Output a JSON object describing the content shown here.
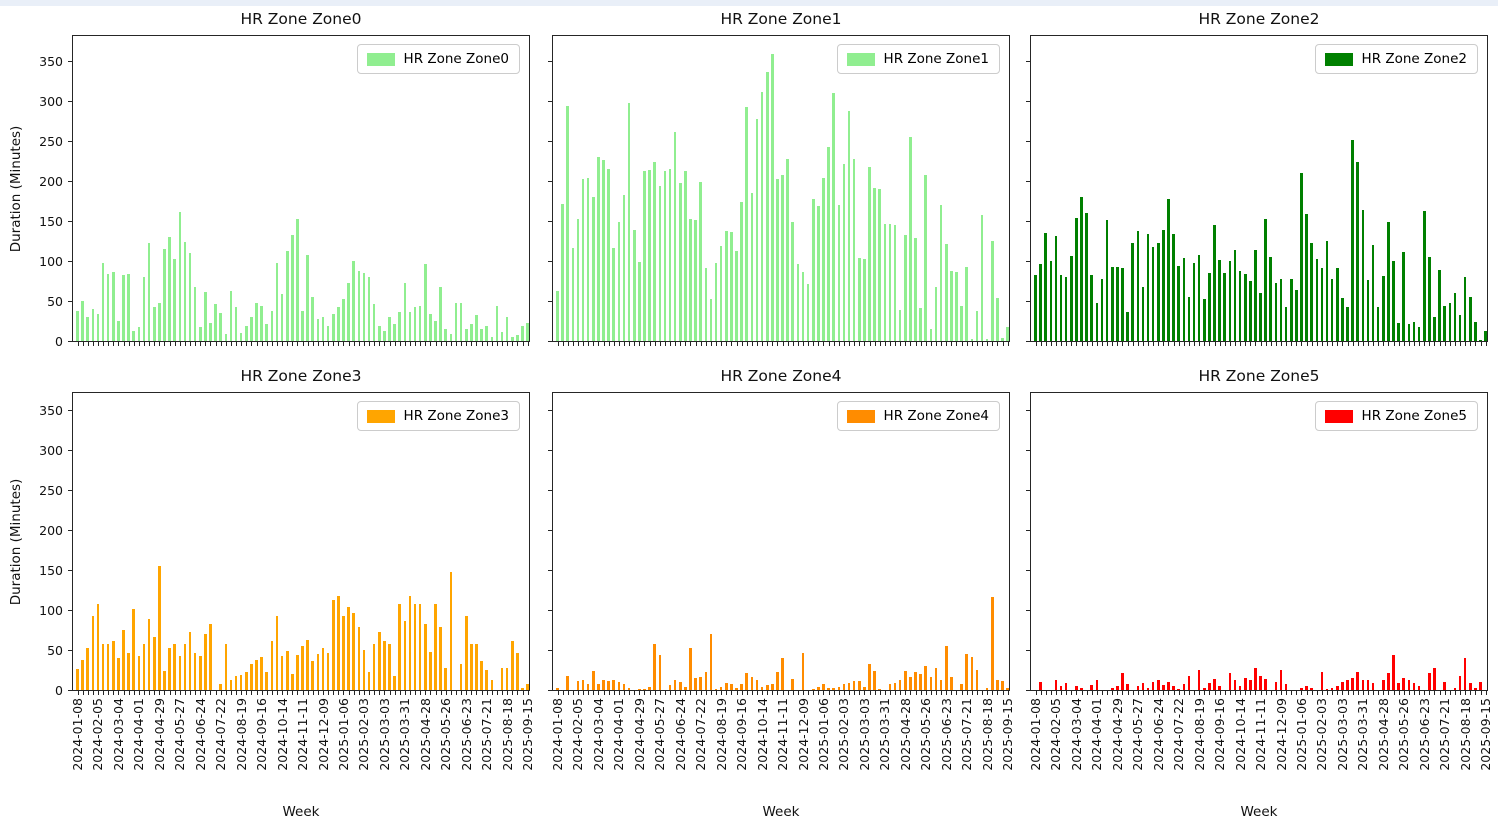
{
  "page": {
    "top_strip_color": "#e9eff8"
  },
  "axes": {
    "ylabel": "Duration (Minutes)",
    "xlabel": "Week",
    "yticks": [
      0,
      50,
      100,
      150,
      200,
      250,
      300,
      350
    ],
    "xtick_labels": [
      "2024-01-08",
      "2024-02-05",
      "2024-03-04",
      "2024-04-01",
      "2024-04-29",
      "2024-05-27",
      "2024-06-24",
      "2024-07-22",
      "2024-08-19",
      "2024-09-16",
      "2024-10-14",
      "2024-11-11",
      "2024-12-09",
      "2025-01-06",
      "2025-02-03",
      "2025-03-03",
      "2025-03-31",
      "2025-04-28",
      "2025-05-26",
      "2025-06-23",
      "2025-07-21",
      "2025-08-18",
      "2025-09-15"
    ],
    "xtick_step_weeks": 4,
    "grid": false,
    "legend_position": "upper right"
  },
  "chart_data": [
    {
      "type": "bar",
      "title": "HR Zone Zone0",
      "legend_label": "HR Zone Zone0",
      "color": "#90ee90",
      "ylim": [
        0,
        383
      ],
      "values": [
        38,
        50,
        30,
        40,
        34,
        97,
        84,
        86,
        25,
        82,
        84,
        13,
        17,
        80,
        122,
        42,
        47,
        115,
        130,
        103,
        161,
        124,
        110,
        67,
        17,
        61,
        23,
        46,
        35,
        9,
        63,
        42,
        10,
        19,
        30,
        48,
        44,
        21,
        37,
        97,
        59,
        112,
        132,
        152,
        38,
        107,
        55,
        28,
        30,
        19,
        34,
        42,
        52,
        73,
        100,
        88,
        85,
        80,
        46,
        19,
        13,
        30,
        21,
        36,
        73,
        36,
        42,
        44,
        96,
        34,
        25,
        67,
        15,
        9,
        48,
        48,
        15,
        21,
        32,
        15,
        19,
        5,
        44,
        11,
        30,
        5,
        7,
        19,
        23
      ]
    },
    {
      "type": "bar",
      "title": "HR Zone Zone1",
      "legend_label": "HR Zone Zone1",
      "color": "#90ee90",
      "ylim": [
        0,
        383
      ],
      "values": [
        62,
        171,
        294,
        116,
        152,
        203,
        204,
        180,
        230,
        226,
        215,
        116,
        149,
        183,
        297,
        139,
        99,
        212,
        214,
        224,
        194,
        212,
        215,
        261,
        197,
        212,
        153,
        151,
        199,
        91,
        53,
        98,
        119,
        137,
        136,
        112,
        174,
        293,
        185,
        278,
        311,
        336,
        359,
        203,
        208,
        228,
        149,
        96,
        86,
        71,
        178,
        169,
        204,
        242,
        310,
        170,
        221,
        288,
        228,
        104,
        103,
        217,
        191,
        190,
        146,
        146,
        145,
        39,
        133,
        255,
        129,
        41,
        208,
        15,
        67,
        170,
        121,
        88,
        86,
        44,
        92,
        3,
        38,
        158,
        2,
        125,
        54,
        4,
        17
      ]
    },
    {
      "type": "bar",
      "title": "HR Zone Zone2",
      "legend_label": "HR Zone Zone2",
      "color": "#008000",
      "ylim": [
        0,
        383
      ],
      "values": [
        83,
        96,
        135,
        100,
        131,
        82,
        80,
        106,
        154,
        180,
        160,
        82,
        48,
        78,
        151,
        92,
        93,
        91,
        36,
        123,
        137,
        67,
        134,
        117,
        123,
        139,
        178,
        134,
        94,
        104,
        55,
        97,
        107,
        53,
        85,
        145,
        101,
        85,
        100,
        114,
        87,
        84,
        75,
        114,
        60,
        153,
        105,
        72,
        78,
        43,
        78,
        64,
        210,
        159,
        123,
        102,
        91,
        125,
        77,
        91,
        54,
        43,
        251,
        224,
        164,
        76,
        120,
        42,
        81,
        149,
        100,
        22,
        111,
        21,
        24,
        18,
        162,
        105,
        30,
        89,
        44,
        47,
        60,
        33,
        80,
        55,
        24,
        1,
        12
      ]
    },
    {
      "type": "bar",
      "title": "HR Zone Zone3",
      "legend_label": "HR Zone Zone3",
      "color": "#ffa500",
      "ylim": [
        0,
        374
      ],
      "values": [
        26,
        37,
        52,
        92,
        107,
        58,
        58,
        61,
        40,
        75,
        46,
        101,
        42,
        58,
        89,
        66,
        155,
        24,
        52,
        57,
        43,
        58,
        73,
        46,
        43,
        70,
        82,
        0,
        8,
        58,
        12,
        18,
        19,
        23,
        33,
        38,
        41,
        22,
        61,
        92,
        42,
        49,
        20,
        44,
        55,
        63,
        36,
        45,
        52,
        46,
        113,
        117,
        92,
        104,
        96,
        79,
        50,
        23,
        58,
        73,
        61,
        58,
        17,
        108,
        86,
        117,
        108,
        108,
        83,
        48,
        107,
        79,
        28,
        148,
        0,
        33,
        92,
        58,
        58,
        36,
        25,
        12,
        0,
        28,
        28,
        61,
        46,
        2,
        8
      ]
    },
    {
      "type": "bar",
      "title": "HR Zone Zone4",
      "legend_label": "HR Zone Zone4",
      "color": "#ff8c00",
      "ylim": [
        0,
        374
      ],
      "values": [
        3,
        0,
        17,
        0,
        11,
        12,
        8,
        24,
        7,
        12,
        11,
        12,
        10,
        7,
        2,
        0,
        1,
        1,
        4,
        57,
        44,
        0,
        6,
        12,
        10,
        4,
        52,
        15,
        16,
        22,
        70,
        1,
        4,
        9,
        7,
        3,
        7,
        21,
        16,
        12,
        4,
        6,
        7,
        23,
        40,
        0,
        14,
        0,
        46,
        0,
        1,
        4,
        8,
        2,
        3,
        4,
        8,
        9,
        11,
        11,
        4,
        33,
        24,
        1,
        0,
        8,
        9,
        12,
        24,
        16,
        22,
        20,
        30,
        16,
        27,
        12,
        55,
        16,
        0,
        8,
        45,
        41,
        25,
        0,
        3,
        116,
        13,
        11,
        3
      ]
    },
    {
      "type": "bar",
      "title": "HR Zone Zone5",
      "legend_label": "HR Zone Zone5",
      "color": "#ff0000",
      "ylim": [
        0,
        374
      ],
      "values": [
        0,
        10,
        0,
        0,
        12,
        5,
        9,
        0,
        5,
        3,
        0,
        6,
        12,
        0,
        0,
        2,
        5,
        21,
        8,
        0,
        5,
        9,
        2,
        10,
        12,
        6,
        10,
        5,
        1,
        8,
        18,
        0,
        25,
        2,
        9,
        14,
        5,
        0,
        21,
        12,
        5,
        15,
        13,
        28,
        18,
        14,
        0,
        10,
        25,
        8,
        0,
        0,
        3,
        5,
        2,
        0,
        22,
        1,
        3,
        5,
        10,
        12,
        15,
        23,
        13,
        12,
        9,
        0,
        13,
        21,
        44,
        9,
        15,
        12,
        9,
        5,
        0,
        21,
        28,
        0,
        10,
        0,
        2,
        17,
        40,
        9,
        3,
        10,
        0
      ]
    }
  ]
}
